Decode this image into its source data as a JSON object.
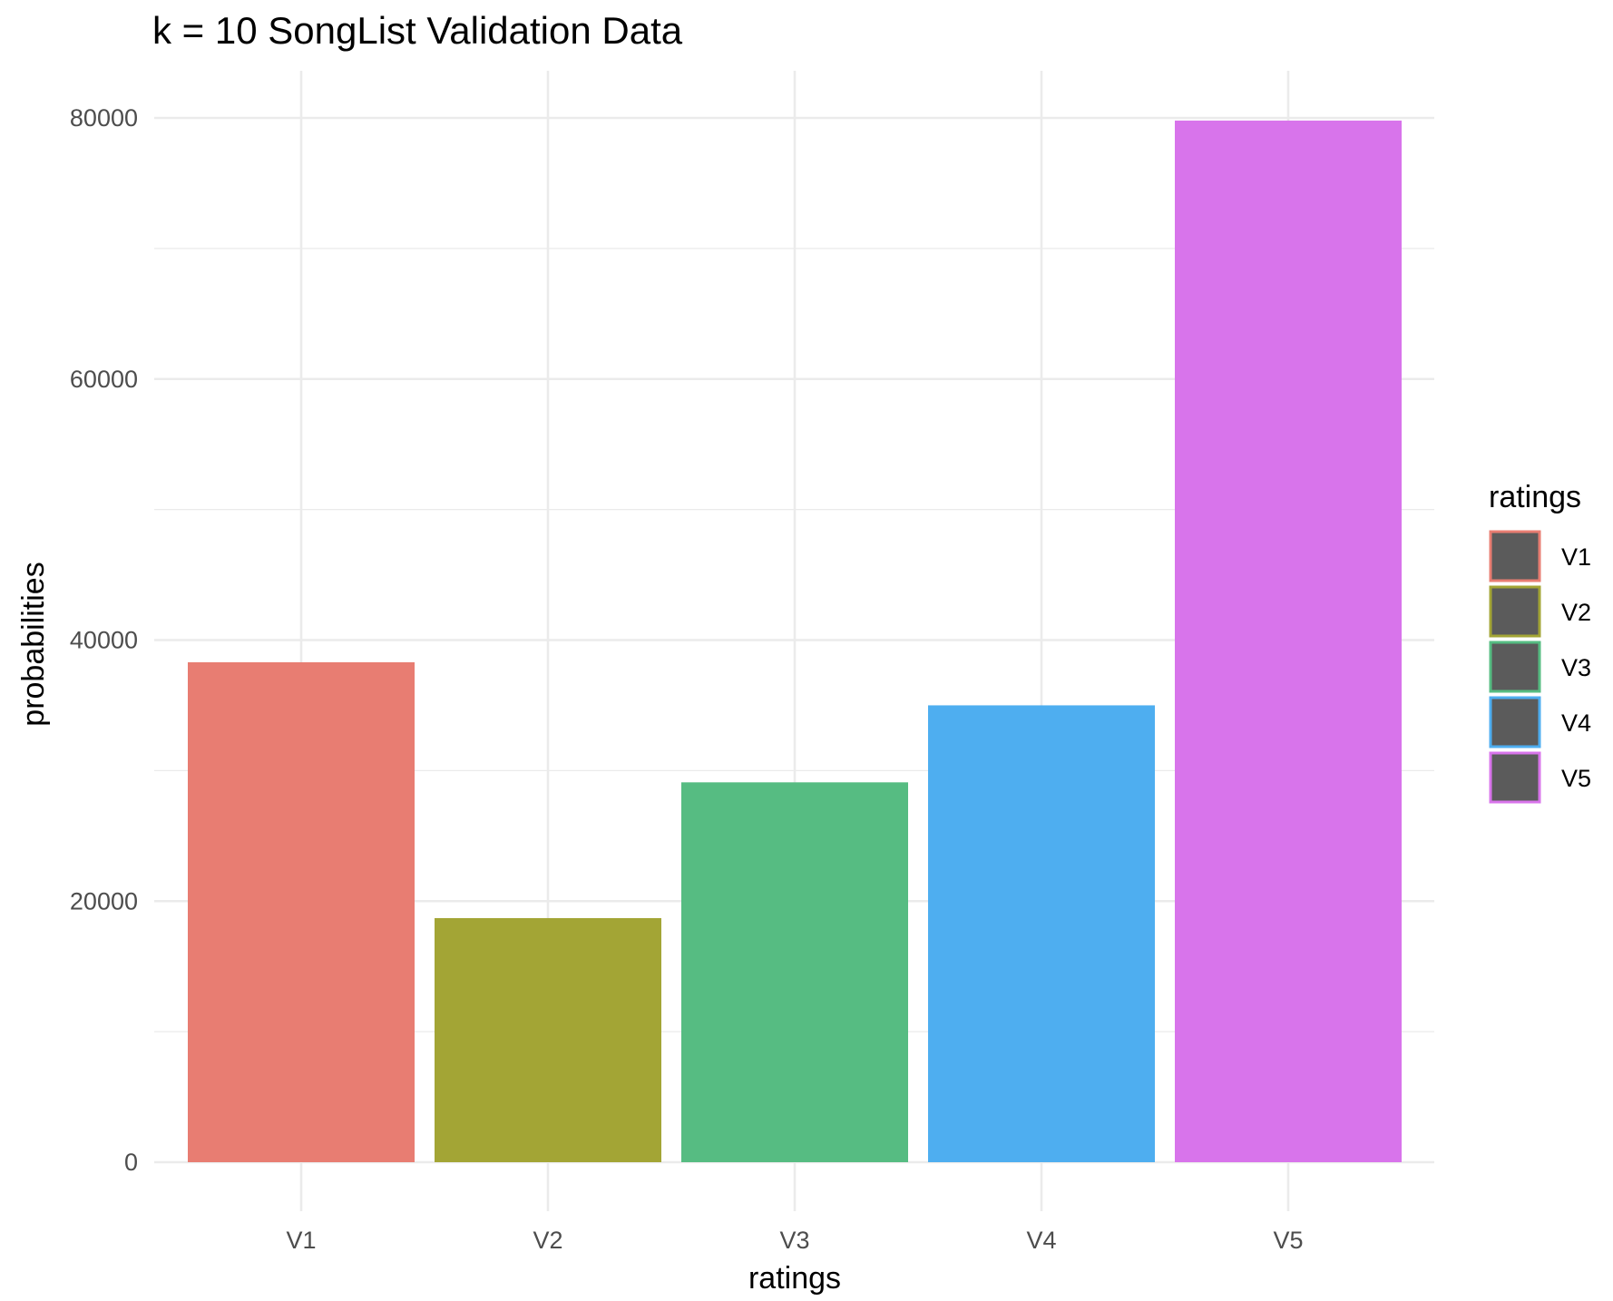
{
  "chart_data": {
    "type": "bar",
    "title": "k = 10 SongList Validation Data",
    "xlabel": "ratings",
    "ylabel": "probabilities",
    "categories": [
      "V1",
      "V2",
      "V3",
      "V4",
      "V5"
    ],
    "values": [
      38300,
      18700,
      29100,
      35000,
      79800
    ],
    "colors": [
      "#E87D72",
      "#A3A535",
      "#56BC82",
      "#4EAEF0",
      "#D874EB"
    ],
    "ylim": [
      0,
      80000
    ],
    "yticks": [
      0,
      20000,
      40000,
      60000,
      80000
    ],
    "ytick_labels": [
      "0",
      "20000",
      "40000",
      "60000",
      "80000"
    ],
    "grid": true,
    "legend": {
      "title": "ratings",
      "position": "right",
      "fill": "#5B5B5B",
      "entries": [
        "V1",
        "V2",
        "V3",
        "V4",
        "V5"
      ]
    }
  }
}
